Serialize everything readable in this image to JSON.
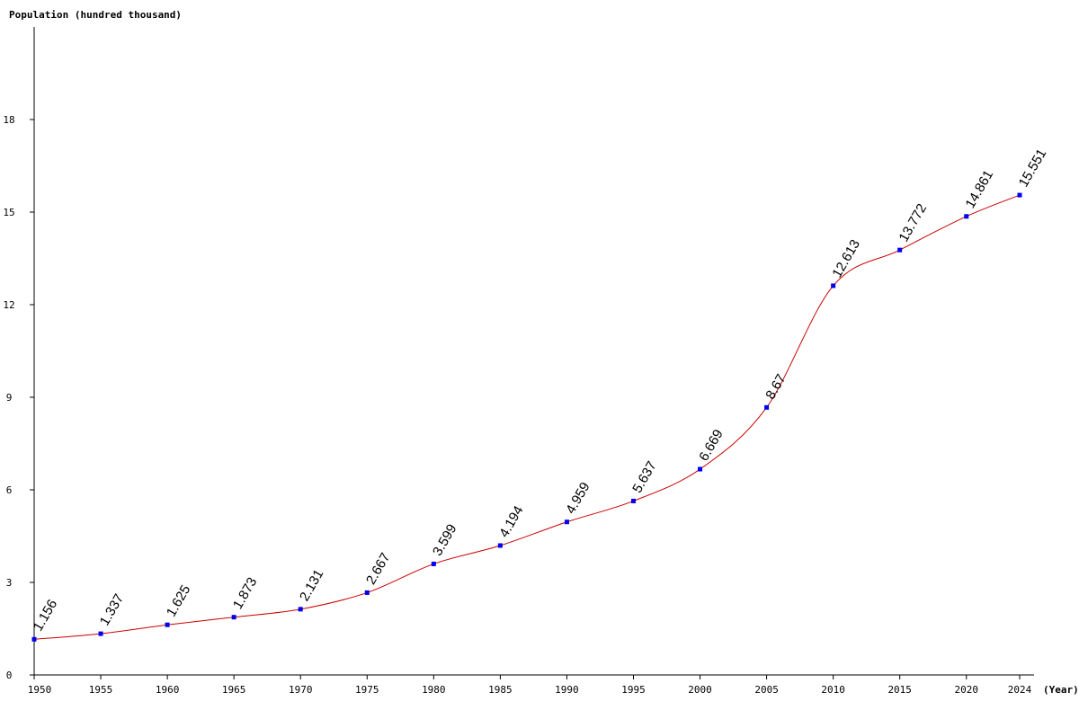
{
  "chart_data": {
    "type": "line",
    "title": "",
    "ylabel": "Population (hundred thousand)",
    "xlabel": "(Year)",
    "x": [
      1950,
      1955,
      1960,
      1965,
      1970,
      1975,
      1980,
      1985,
      1990,
      1995,
      2000,
      2005,
      2010,
      2015,
      2020,
      2024
    ],
    "x_tick_labels": [
      "1950",
      "1955",
      "1960",
      "1965",
      "1970",
      "1975",
      "1980",
      "1985",
      "1990",
      "1995",
      "2000",
      "2005",
      "2010",
      "2015",
      "2020",
      "2024"
    ],
    "y_ticks": [
      0,
      3,
      6,
      9,
      12,
      15,
      18
    ],
    "y_tick_labels": [
      "0",
      "3",
      "6",
      "9",
      "12",
      "15",
      "18"
    ],
    "ylim": [
      0,
      21
    ],
    "xlim": [
      1950,
      2024
    ],
    "grid": false,
    "series": [
      {
        "values": [
          1.156,
          1.337,
          1.625,
          1.873,
          2.131,
          2.667,
          3.599,
          4.194,
          4.959,
          5.637,
          6.669,
          8.67,
          12.613,
          13.772,
          14.861,
          15.551
        ],
        "labels": [
          "1.156",
          "1.337",
          "1.625",
          "1.873",
          "2.131",
          "2.667",
          "3.599",
          "4.194",
          "4.959",
          "5.637",
          "6.669",
          "8.67",
          "12.613",
          "13.772",
          "14.861",
          "15.551"
        ],
        "line_color": "#cc0000",
        "marker_color": "#0000ee"
      }
    ]
  }
}
